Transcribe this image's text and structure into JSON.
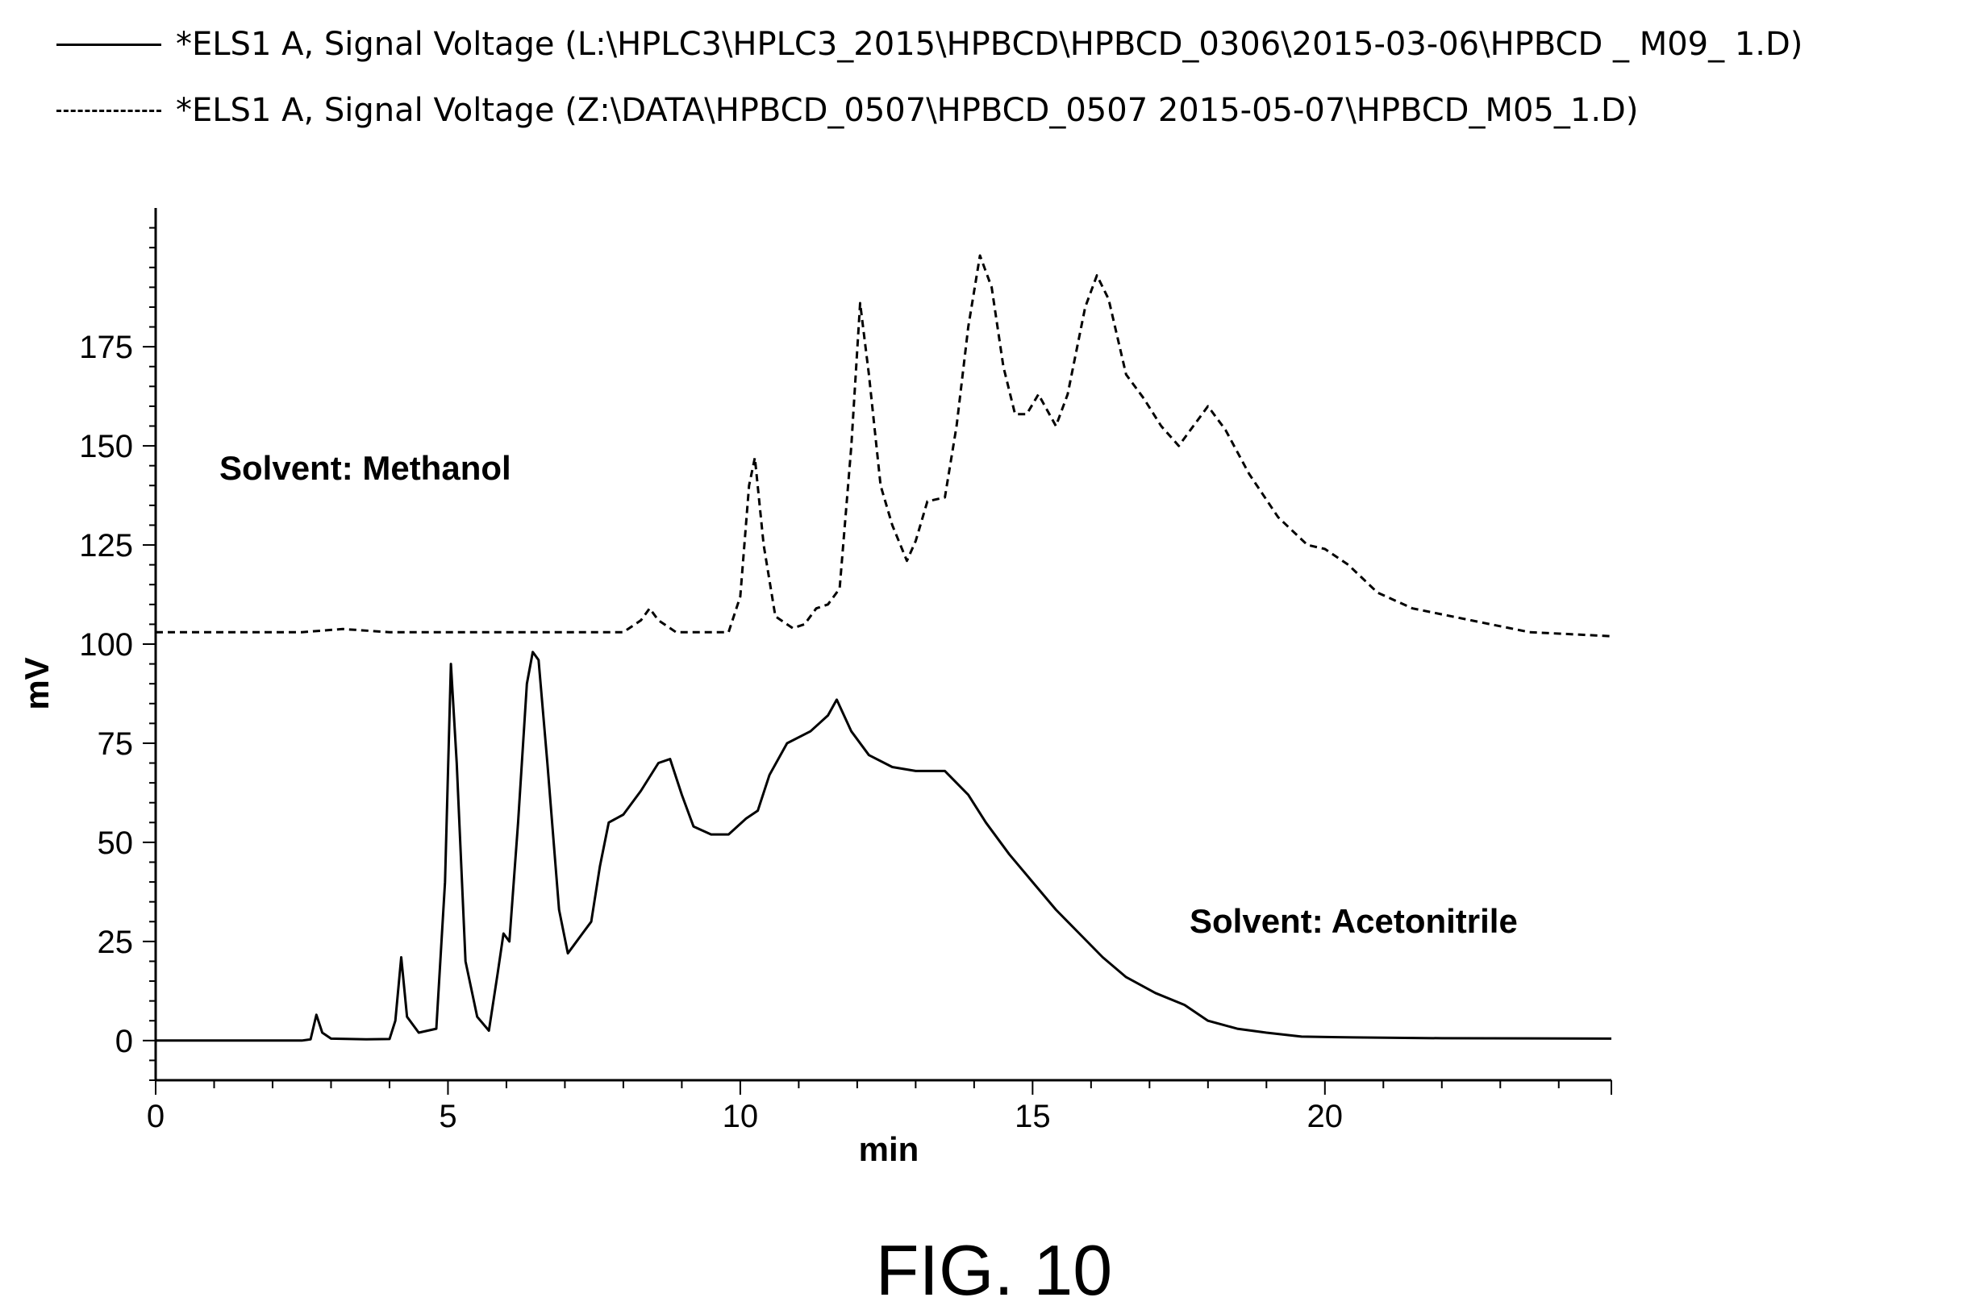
{
  "figure_label": "FIG. 10",
  "chart_data": {
    "type": "line",
    "title": "",
    "xlabel": "min",
    "ylabel": "mV",
    "xlim": [
      0,
      24.9
    ],
    "ylim": [
      -10,
      210
    ],
    "xticks": [
      0,
      5,
      10,
      15,
      20
    ],
    "yticks": [
      0,
      25,
      50,
      75,
      100,
      125,
      150,
      175
    ],
    "grid": false,
    "legend_position": "top",
    "series": [
      {
        "name": "*ELS1 A, Signal Voltage (L:\\HPLC3\\HPLC3_2015\\HPBCD\\HPBCD_0306\\2015-03-06\\HPBCD _ M09_ 1.D)",
        "style": "solid",
        "annotation": "Solvent: Acetonitrile",
        "points": [
          [
            0,
            0
          ],
          [
            2.5,
            0
          ],
          [
            2.65,
            0.3
          ],
          [
            2.75,
            6.5
          ],
          [
            2.85,
            2
          ],
          [
            3.0,
            0.5
          ],
          [
            3.6,
            0.3
          ],
          [
            4.0,
            0.4
          ],
          [
            4.1,
            5
          ],
          [
            4.2,
            21
          ],
          [
            4.3,
            6
          ],
          [
            4.5,
            2
          ],
          [
            4.8,
            3
          ],
          [
            4.95,
            40
          ],
          [
            5.05,
            95
          ],
          [
            5.15,
            70
          ],
          [
            5.3,
            20
          ],
          [
            5.5,
            6
          ],
          [
            5.7,
            2.5
          ],
          [
            5.85,
            17
          ],
          [
            5.95,
            27
          ],
          [
            6.05,
            25
          ],
          [
            6.2,
            55
          ],
          [
            6.35,
            90
          ],
          [
            6.45,
            98
          ],
          [
            6.55,
            96
          ],
          [
            6.7,
            70
          ],
          [
            6.9,
            33
          ],
          [
            7.05,
            22
          ],
          [
            7.15,
            24
          ],
          [
            7.3,
            27
          ],
          [
            7.45,
            30
          ],
          [
            7.6,
            44
          ],
          [
            7.75,
            55
          ],
          [
            8.0,
            57
          ],
          [
            8.3,
            63
          ],
          [
            8.6,
            70
          ],
          [
            8.8,
            71
          ],
          [
            9.0,
            62
          ],
          [
            9.2,
            54
          ],
          [
            9.5,
            52
          ],
          [
            9.8,
            52
          ],
          [
            10.1,
            56
          ],
          [
            10.3,
            58
          ],
          [
            10.5,
            67
          ],
          [
            10.8,
            75
          ],
          [
            11.2,
            78
          ],
          [
            11.5,
            82
          ],
          [
            11.65,
            86
          ],
          [
            11.9,
            78
          ],
          [
            12.2,
            72
          ],
          [
            12.6,
            69
          ],
          [
            13.0,
            68
          ],
          [
            13.5,
            68
          ],
          [
            13.9,
            62
          ],
          [
            14.2,
            55
          ],
          [
            14.6,
            47
          ],
          [
            15.0,
            40
          ],
          [
            15.4,
            33
          ],
          [
            15.8,
            27
          ],
          [
            16.2,
            21
          ],
          [
            16.6,
            16
          ],
          [
            17.1,
            12
          ],
          [
            17.6,
            9
          ],
          [
            18.0,
            5
          ],
          [
            18.5,
            3
          ],
          [
            19.0,
            2
          ],
          [
            19.6,
            1
          ],
          [
            20.5,
            0.8
          ],
          [
            22,
            0.6
          ],
          [
            24.9,
            0.5
          ]
        ]
      },
      {
        "name": "*ELS1 A, Signal Voltage (Z:\\DATA\\HPBCD_0507\\HPBCD_0507 2015-05-07\\HPBCD_M05_1.D)",
        "style": "dashed",
        "annotation": "Solvent: Methanol",
        "points": [
          [
            0,
            103
          ],
          [
            2.5,
            103
          ],
          [
            3.2,
            103.8
          ],
          [
            4.0,
            103
          ],
          [
            8.0,
            103
          ],
          [
            8.3,
            106
          ],
          [
            8.45,
            109
          ],
          [
            8.6,
            106
          ],
          [
            8.9,
            103
          ],
          [
            9.8,
            103
          ],
          [
            10.0,
            112
          ],
          [
            10.15,
            140
          ],
          [
            10.25,
            147
          ],
          [
            10.4,
            125
          ],
          [
            10.6,
            107
          ],
          [
            10.9,
            104
          ],
          [
            11.1,
            105
          ],
          [
            11.3,
            109
          ],
          [
            11.5,
            110
          ],
          [
            11.7,
            114
          ],
          [
            11.9,
            150
          ],
          [
            12.05,
            186
          ],
          [
            12.2,
            168
          ],
          [
            12.4,
            140
          ],
          [
            12.6,
            130
          ],
          [
            12.85,
            121
          ],
          [
            13.0,
            126
          ],
          [
            13.2,
            136
          ],
          [
            13.5,
            137
          ],
          [
            13.7,
            155
          ],
          [
            13.9,
            180
          ],
          [
            14.1,
            198
          ],
          [
            14.3,
            190
          ],
          [
            14.5,
            170
          ],
          [
            14.7,
            158
          ],
          [
            14.9,
            158
          ],
          [
            15.1,
            163
          ],
          [
            15.4,
            155
          ],
          [
            15.6,
            163
          ],
          [
            15.9,
            185
          ],
          [
            16.1,
            193
          ],
          [
            16.3,
            187
          ],
          [
            16.6,
            168
          ],
          [
            16.9,
            162
          ],
          [
            17.2,
            155
          ],
          [
            17.5,
            150
          ],
          [
            17.8,
            156
          ],
          [
            18.0,
            160
          ],
          [
            18.3,
            154
          ],
          [
            18.7,
            143
          ],
          [
            19.2,
            132
          ],
          [
            19.7,
            125
          ],
          [
            20.0,
            124
          ],
          [
            20.4,
            120
          ],
          [
            20.9,
            113
          ],
          [
            21.5,
            109
          ],
          [
            22.5,
            106
          ],
          [
            23.5,
            103
          ],
          [
            24.9,
            102
          ]
        ]
      }
    ]
  }
}
